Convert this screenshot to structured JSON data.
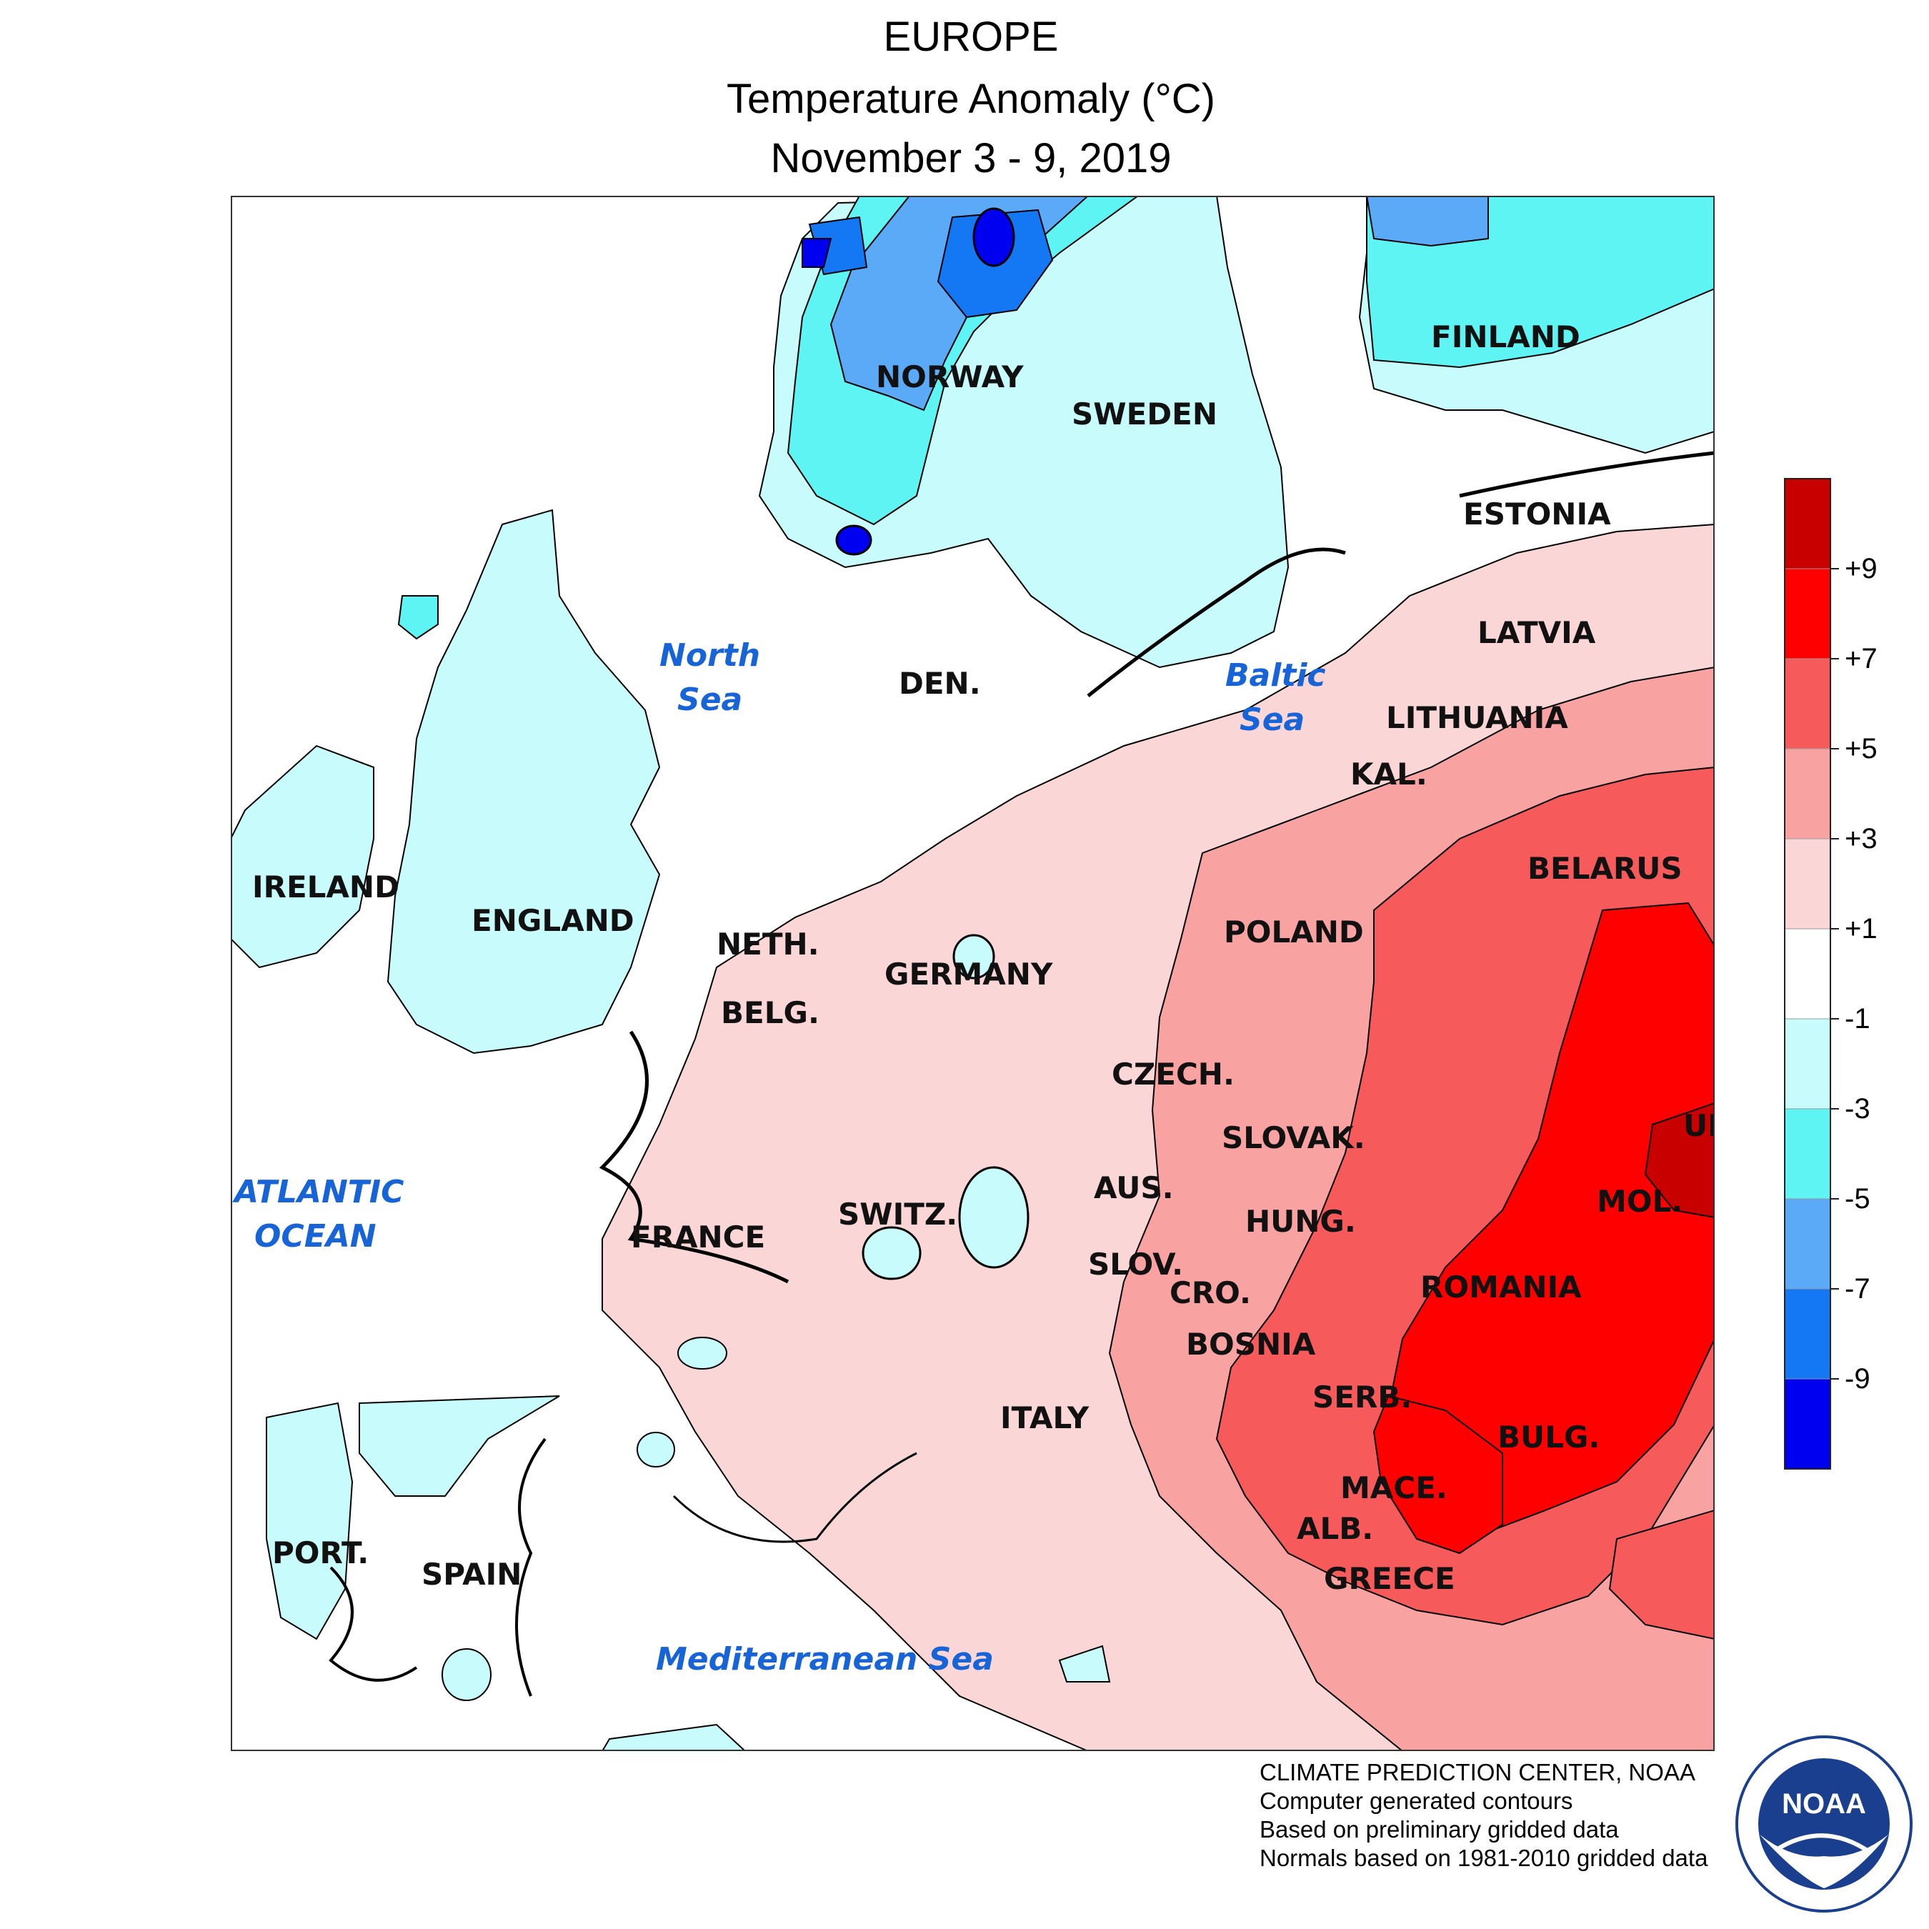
{
  "header": {
    "region": "EUROPE",
    "product": "Temperature Anomaly (°C)",
    "period": "November 3 - 9, 2019"
  },
  "labels": {
    "countries": {
      "norway": "NORWAY",
      "sweden": "SWEDEN",
      "finland": "FINLAND",
      "estonia": "ESTONIA",
      "latvia": "LATVIA",
      "lithuania": "LITHUANIA",
      "kal": "KAL.",
      "belarus": "BELARUS",
      "poland": "POLAND",
      "den": "DEN.",
      "ireland": "IRELAND",
      "england": "ENGLAND",
      "neth": "NETH.",
      "belg": "BELG.",
      "germany": "GERMANY",
      "czech": "CZECH.",
      "slovak": "SLOVAK.",
      "aus": "AUS.",
      "hung": "HUNG.",
      "switz": "SWITZ.",
      "france": "FRANCE",
      "slov": "SLOV.",
      "cro": "CRO.",
      "bosnia": "BOSNIA",
      "serb": "SERB.",
      "romania": "ROMANIA",
      "mol": "MOL.",
      "uk": "UK",
      "bulg": "BULG.",
      "mace": "MACE.",
      "alb": "ALB.",
      "greece": "GREECE",
      "italy": "ITALY",
      "port": "PORT.",
      "spain": "SPAIN"
    },
    "water": {
      "north_sea_1": "North",
      "north_sea_2": "Sea",
      "baltic_1": "Baltic",
      "baltic_2": "Sea",
      "atlantic_1": "ATLANTIC",
      "atlantic_2": "OCEAN",
      "med": "Mediterranean Sea"
    }
  },
  "legend": {
    "unit": "°C",
    "ticks": [
      "+9",
      "+7",
      "+5",
      "+3",
      "+1",
      "-1",
      "-3",
      "-5",
      "-7",
      "-9"
    ],
    "colors": [
      "#c80000",
      "#ff0000",
      "#f75a5a",
      "#f9a2a2",
      "#fbd6d6",
      "#ffffff",
      "#c8fbfb",
      "#5ef4f4",
      "#5aaaf7",
      "#1478f5",
      "#0000f0"
    ]
  },
  "credits": {
    "line1": "CLIMATE PREDICTION CENTER, NOAA",
    "line2": "Computer generated contours",
    "line3": "Based on preliminary gridded data",
    "line4": "Normals based on 1981-2010 gridded data"
  },
  "logo": {
    "text": "NOAA",
    "icon": "noaa-logo-icon"
  }
}
